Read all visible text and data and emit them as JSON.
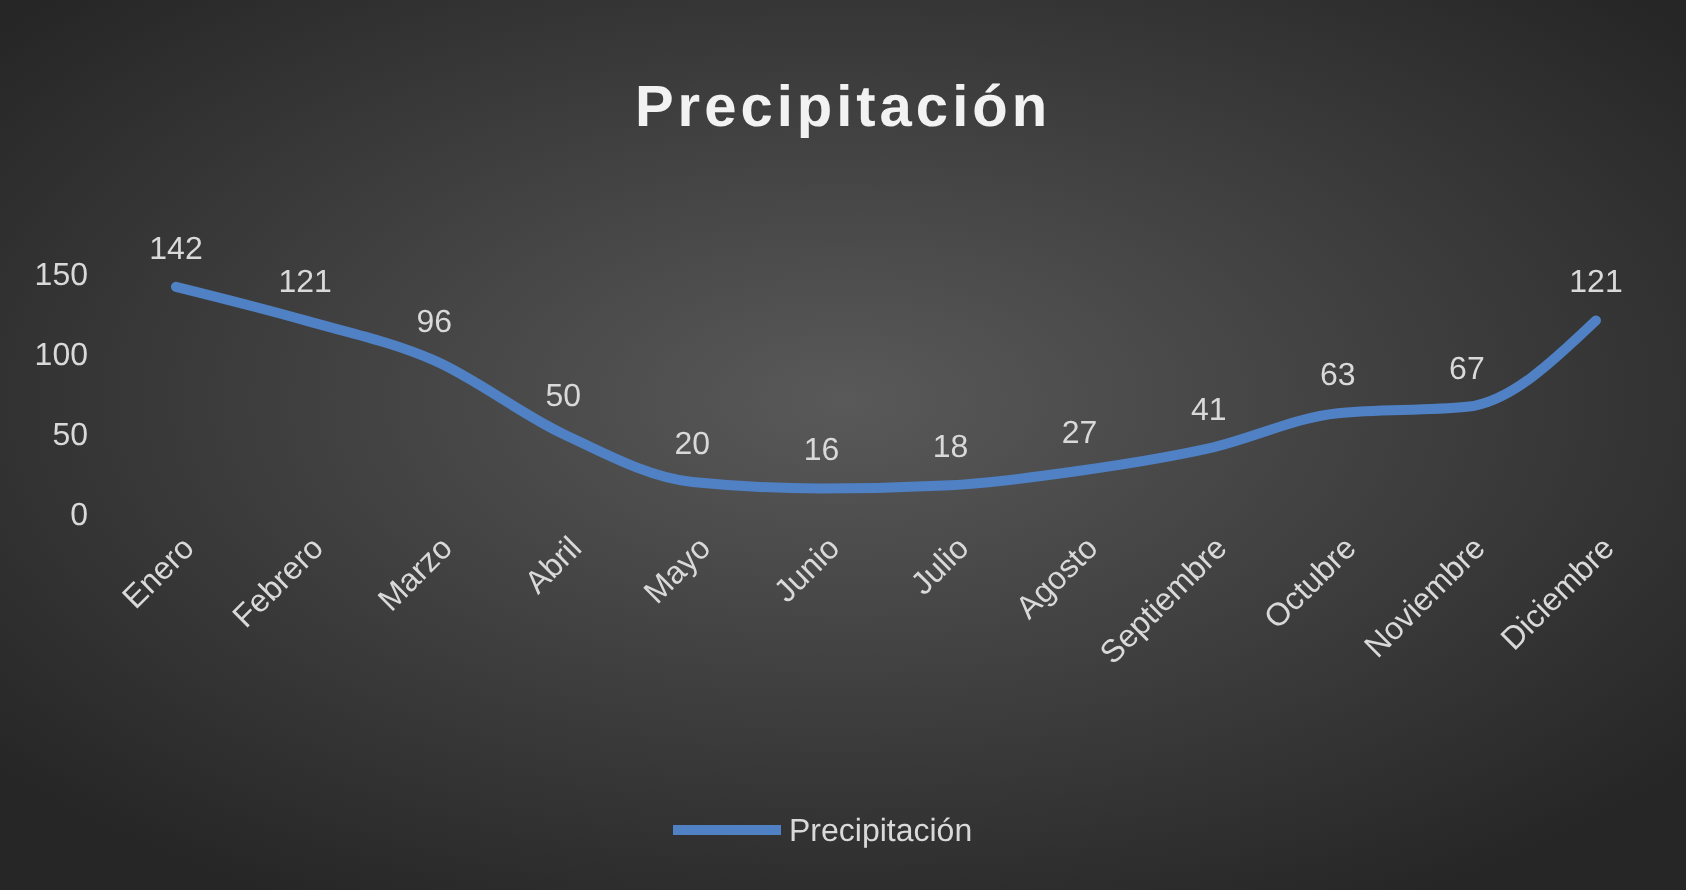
{
  "chart_data": {
    "type": "line",
    "title": "Precipitación",
    "categories": [
      "Enero",
      "Febrero",
      "Marzo",
      "Abril",
      "Mayo",
      "Junio",
      "Julio",
      "Agosto",
      "Septiembre",
      "Octubre",
      "Noviembre",
      "Diciembre"
    ],
    "series": [
      {
        "name": "Precipitación",
        "color": "#4f81c4",
        "values": [
          142,
          121,
          96,
          50,
          20,
          16,
          18,
          27,
          41,
          63,
          67,
          121
        ]
      }
    ],
    "ylim": [
      0,
      150
    ],
    "yticks": [
      0,
      50,
      100,
      150
    ],
    "grid": false,
    "legend": "bottom",
    "data_labels": true,
    "marker": "none",
    "line_style": "solid"
  }
}
